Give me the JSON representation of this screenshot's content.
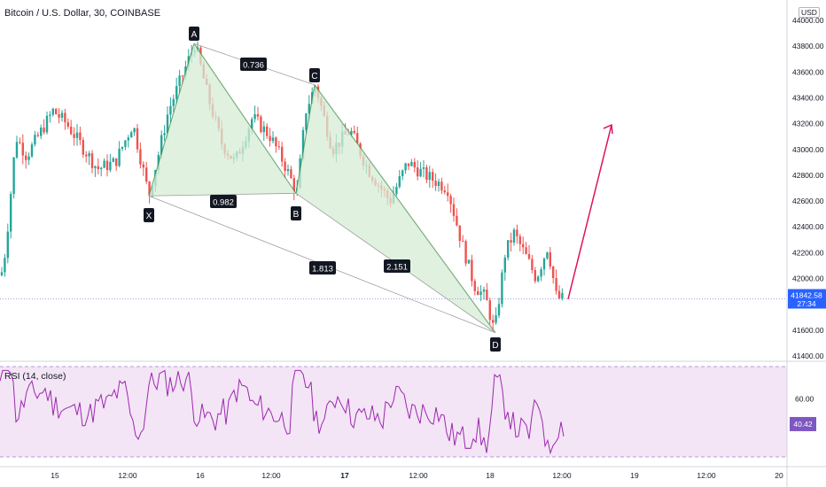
{
  "header": {
    "title": "Bitcoin / U.S. Dollar, 30, COINBASE",
    "currency": "USD"
  },
  "colors": {
    "up": "#26a69a",
    "down": "#ef5350",
    "pattern_fill": "#d6ecd6",
    "pattern_line": "#9e9e9e",
    "projection": "#e0115f",
    "rsi_line": "#9c27b0",
    "rsi_band": "#f3e5f5",
    "price_badge": "#2962ff",
    "rsi_badge": "#7e57c2"
  },
  "chart_data": [
    {
      "type": "candlestick",
      "title": "Bitcoin / U.S. Dollar, 30, COINBASE",
      "y_axis_ticks": [
        "44000.00",
        "43800.00",
        "43600.00",
        "43400.00",
        "43200.00",
        "43000.00",
        "42800.00",
        "42600.00",
        "42400.00",
        "42200.00",
        "42000.00",
        "41800.00",
        "41600.00",
        "41400.00"
      ],
      "ylim": [
        41400,
        44100
      ],
      "x_axis_ticks": [
        "15",
        "12:00",
        "16",
        "12:00",
        "17",
        "12:00",
        "18",
        "12:00",
        "19",
        "12:00",
        "20"
      ],
      "last_price": "41842.58",
      "countdown": "27:34",
      "harmonic_points": [
        {
          "label": "X",
          "price": 42640
        },
        {
          "label": "A",
          "price": 43820
        },
        {
          "label": "B",
          "price": 42660
        },
        {
          "label": "C",
          "price": 43500
        },
        {
          "label": "D",
          "price": 41580
        }
      ],
      "ratios": [
        "0.736",
        "0.982",
        "1.813",
        "2.151"
      ],
      "projection": {
        "from_price": 41840,
        "to_price": 43190
      }
    },
    {
      "type": "line",
      "title": "RSI (14, close)",
      "y_axis_ticks": [
        "60.00"
      ],
      "last_value": "40.42",
      "bands": [
        70,
        30
      ]
    }
  ]
}
